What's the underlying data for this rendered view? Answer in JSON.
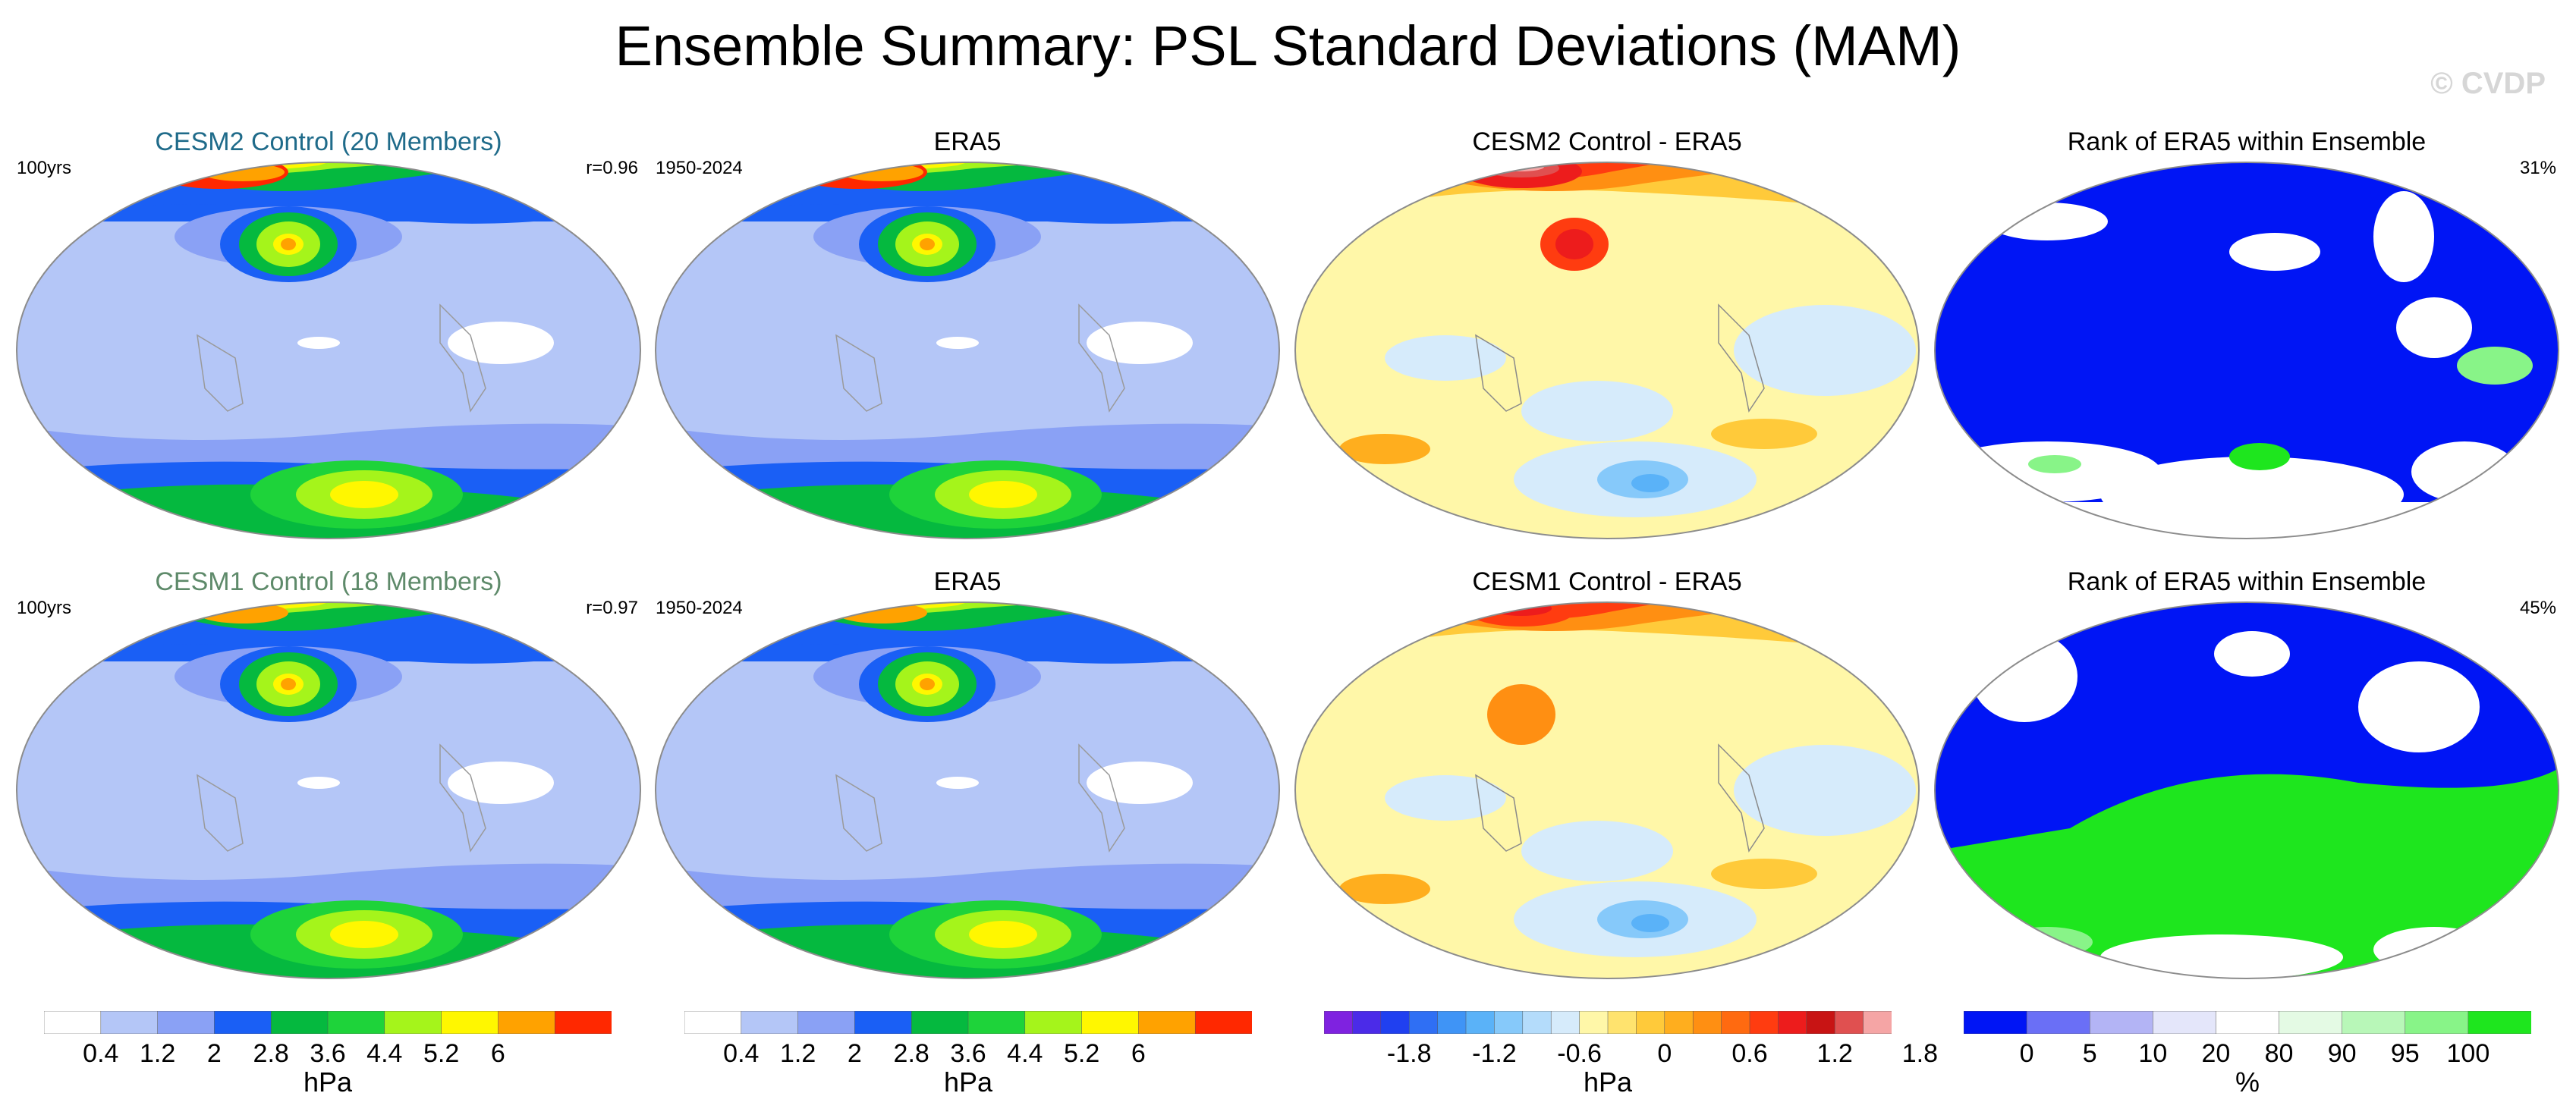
{
  "title": "Ensemble Summary: PSL Standard Deviations (MAM)",
  "watermark": "© CVDP",
  "rows": [
    {
      "panels": [
        {
          "title": "CESM2 Control (20 Members)",
          "title_color": "#1f6b8a",
          "left_label": "100yrs",
          "right_label": "r=0.96",
          "kind": "std"
        },
        {
          "title": "ERA5",
          "title_color": "#000000",
          "left_label": "1950-2024",
          "right_label": "",
          "kind": "std"
        },
        {
          "title": "CESM2 Control - ERA5",
          "title_color": "#000000",
          "left_label": "",
          "right_label": "",
          "kind": "diff"
        },
        {
          "title": "Rank of ERA5 within Ensemble",
          "title_color": "#000000",
          "left_label": "",
          "right_label": "31%",
          "kind": "rank"
        }
      ]
    },
    {
      "panels": [
        {
          "title": "CESM1 Control (18 Members)",
          "title_color": "#5e8a6a",
          "left_label": "100yrs",
          "right_label": "r=0.97",
          "kind": "std"
        },
        {
          "title": "ERA5",
          "title_color": "#000000",
          "left_label": "1950-2024",
          "right_label": "",
          "kind": "std"
        },
        {
          "title": "CESM1 Control - ERA5",
          "title_color": "#000000",
          "left_label": "",
          "right_label": "",
          "kind": "diff"
        },
        {
          "title": "Rank of ERA5 within Ensemble",
          "title_color": "#000000",
          "left_label": "",
          "right_label": "45%",
          "kind": "rank"
        }
      ]
    }
  ],
  "colorbars": [
    {
      "unit": "hPa",
      "colors": [
        "#ffffff",
        "#b4c6f7",
        "#8aa1f5",
        "#1a5ff5",
        "#05b93f",
        "#1ed33a",
        "#a5f41b",
        "#fff700",
        "#ffa200",
        "#ff2800"
      ],
      "ticks": [
        "0.4",
        "1.2",
        "2",
        "2.8",
        "3.6",
        "4.4",
        "5.2",
        "6"
      ]
    },
    {
      "unit": "hPa",
      "colors": [
        "#ffffff",
        "#b4c6f7",
        "#8aa1f5",
        "#1a5ff5",
        "#05b93f",
        "#1ed33a",
        "#a5f41b",
        "#fff700",
        "#ffa200",
        "#ff2800"
      ],
      "ticks": [
        "0.4",
        "1.2",
        "2",
        "2.8",
        "3.6",
        "4.4",
        "5.2",
        "6"
      ]
    },
    {
      "unit": "hPa",
      "colors": [
        "#7f22e0",
        "#4b2be8",
        "#2040f0",
        "#2f6ff4",
        "#3f94f6",
        "#5ab2f8",
        "#86c9fa",
        "#b4dcfb",
        "#d6ebfb",
        "#fff7a8",
        "#ffe36e",
        "#ffca3a",
        "#ffae1e",
        "#ff8f12",
        "#ff6a10",
        "#ff3c10",
        "#ed1c1c",
        "#c81414",
        "#e05050",
        "#f5a5a5"
      ],
      "ticks": [
        "-1.8",
        "-1.2",
        "-0.6",
        "0",
        "0.6",
        "1.2",
        "1.8"
      ]
    },
    {
      "unit": "%",
      "colors": [
        "#0015f5",
        "#6a6ff6",
        "#b3b4f5",
        "#e4e6fa",
        "#ffffff",
        "#e4fae4",
        "#b8f7b8",
        "#88f488",
        "#1ee61e"
      ],
      "ticks": [
        "0",
        "5",
        "10",
        "20",
        "80",
        "90",
        "95",
        "100"
      ]
    }
  ]
}
